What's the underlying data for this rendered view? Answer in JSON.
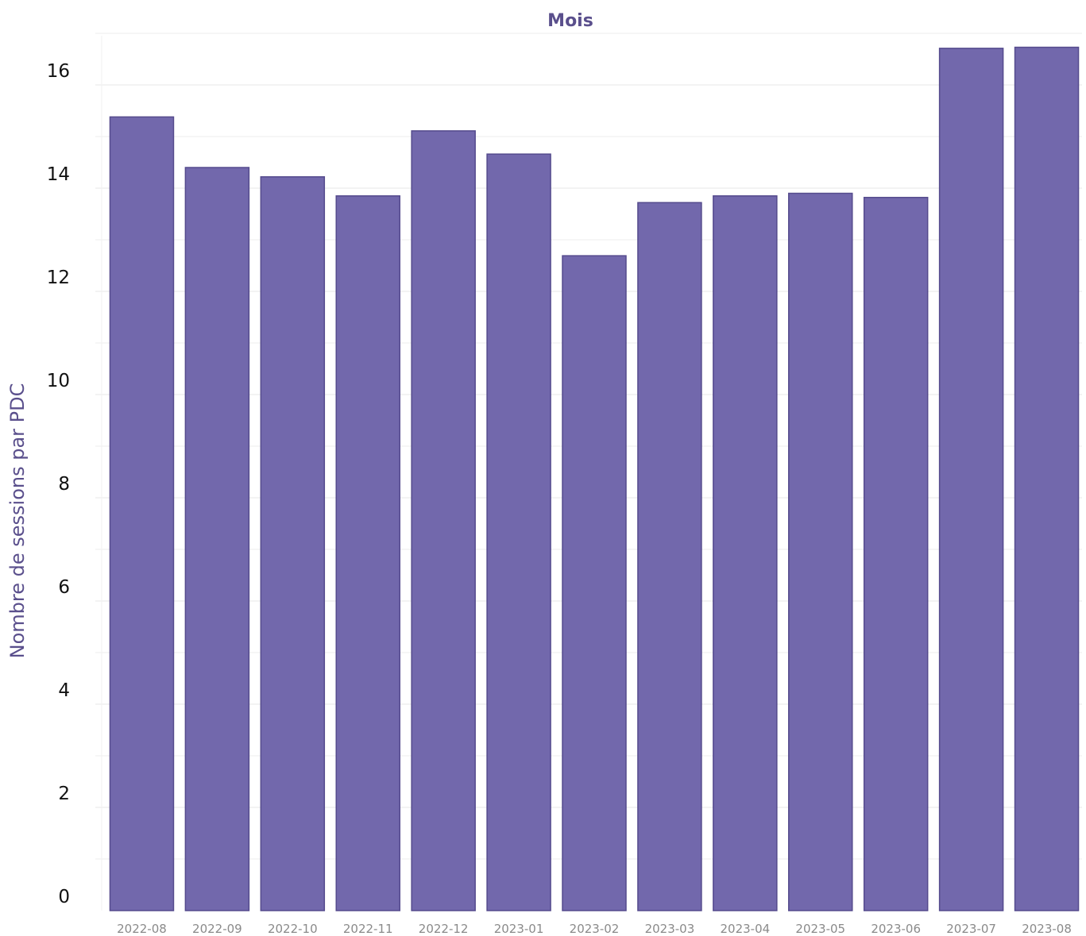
{
  "chart_data": {
    "type": "bar",
    "title": "",
    "xlabel": "Mois",
    "ylabel": "Nombre de sessions par PDC",
    "categories": [
      "2022-08",
      "2022-09",
      "2022-10",
      "2022-11",
      "2022-12",
      "2023-01",
      "2023-02",
      "2023-03",
      "2023-04",
      "2023-05",
      "2023-06",
      "2023-07",
      "2023-08"
    ],
    "values": [
      15.38,
      14.4,
      14.22,
      13.85,
      15.11,
      14.66,
      12.69,
      13.72,
      13.85,
      13.9,
      13.82,
      16.71,
      16.73
    ],
    "yticks": [
      "0",
      "2",
      "4",
      "6",
      "8",
      "10",
      "12",
      "14",
      "16"
    ],
    "ylim": [
      0,
      17.0
    ],
    "grid": true,
    "legend": "none",
    "colors": {
      "bar_fill": "#7268ac",
      "bar_stroke": "#554b8d",
      "axis_title": "#5a4f8c",
      "grid": "#ececec"
    }
  }
}
